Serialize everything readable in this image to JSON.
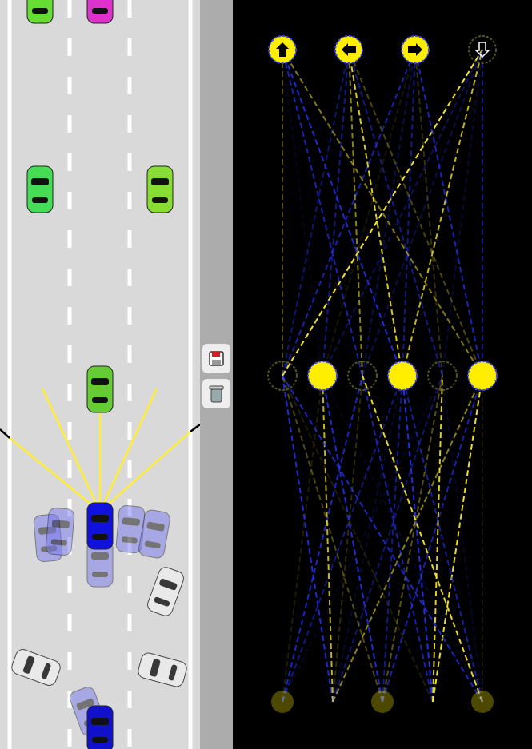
{
  "network": {
    "outputs": [
      1,
      1,
      1,
      0
    ],
    "hidden": [
      0,
      1,
      0,
      1,
      0,
      1
    ],
    "inputs": [
      0.3,
      0,
      0.3,
      0,
      0.3
    ]
  }
}
